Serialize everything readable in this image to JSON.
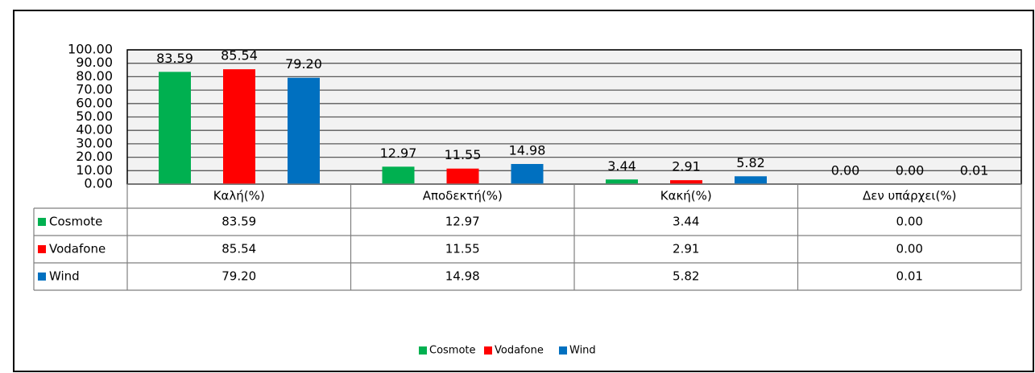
{
  "chart_data": {
    "type": "bar",
    "categories": [
      "Καλή(%)",
      "Αποδεκτή(%)",
      "Κακή(%)",
      "Δεν υπάρχει(%)"
    ],
    "series": [
      {
        "name": "Cosmote",
        "color": "#00b050",
        "values": [
          83.59,
          12.97,
          3.44,
          0.0
        ],
        "value_labels": [
          "83.59",
          "12.97",
          "3.44",
          "0.00"
        ]
      },
      {
        "name": "Vodafone",
        "color": "#ff0000",
        "values": [
          85.54,
          11.55,
          2.91,
          0.0
        ],
        "value_labels": [
          "85.54",
          "11.55",
          "2.91",
          "0.00"
        ]
      },
      {
        "name": "Wind",
        "color": "#0070c0",
        "values": [
          79.2,
          14.98,
          5.82,
          0.01
        ],
        "value_labels": [
          "79.20",
          "14.98",
          "5.82",
          "0.01"
        ]
      }
    ],
    "ylim": [
      0,
      100
    ],
    "yticks": [
      {
        "value": 0,
        "label": "0.00"
      },
      {
        "value": 10,
        "label": "10.00"
      },
      {
        "value": 20,
        "label": "20.00"
      },
      {
        "value": 30,
        "label": "30.00"
      },
      {
        "value": 40,
        "label": "40.00"
      },
      {
        "value": 50,
        "label": "50.00"
      },
      {
        "value": 60,
        "label": "60.00"
      },
      {
        "value": 70,
        "label": "70.00"
      },
      {
        "value": 80,
        "label": "80.00"
      },
      {
        "value": 90,
        "label": "90.00"
      },
      {
        "value": 100,
        "label": "100.00"
      }
    ],
    "grid": true,
    "legend": "bottom"
  }
}
